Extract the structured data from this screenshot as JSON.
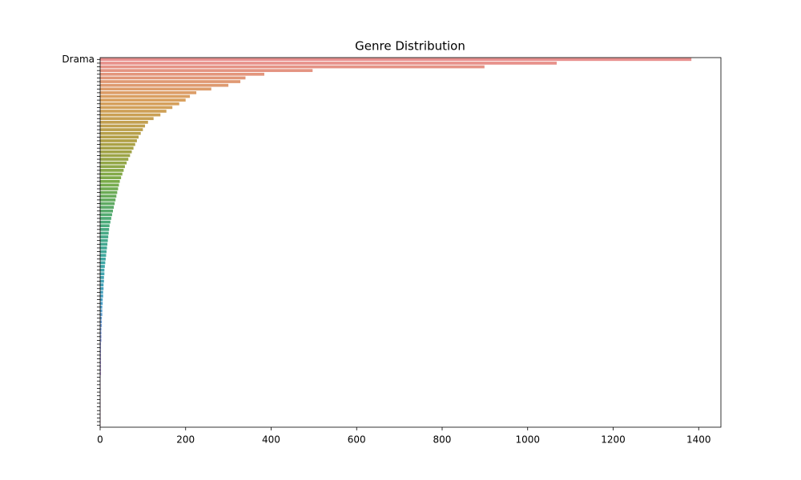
{
  "chart_data": {
    "type": "barh",
    "title": "Genre Distribution",
    "categories": [
      "Drama",
      null,
      null,
      null,
      null,
      null,
      null,
      null,
      null,
      null,
      null,
      null,
      null,
      null,
      null,
      null,
      null,
      null,
      null,
      null,
      null,
      null,
      null,
      null,
      null,
      null,
      null,
      null,
      null,
      null,
      null,
      null,
      null,
      null,
      null,
      null,
      null,
      null,
      null,
      null,
      null,
      null,
      null,
      null,
      null,
      null,
      null,
      null,
      null,
      null,
      null,
      null,
      null,
      null,
      null,
      null,
      null,
      null,
      null,
      null,
      null,
      null,
      null,
      null,
      null,
      null,
      null,
      null,
      null,
      null,
      null,
      null,
      null,
      null,
      null,
      null,
      null,
      null,
      null,
      null,
      null,
      null,
      null,
      null,
      null,
      null,
      null,
      null,
      null,
      null,
      null,
      null,
      null,
      null,
      null,
      null,
      null,
      null,
      null,
      null
    ],
    "values": [
      1383,
      1068,
      899,
      497,
      384,
      340,
      328,
      300,
      260,
      225,
      210,
      200,
      185,
      169,
      155,
      141,
      125,
      112,
      105,
      100,
      95,
      90,
      86,
      82,
      78,
      74,
      70,
      66,
      62,
      58,
      55,
      52,
      49,
      46,
      44,
      42,
      40,
      38,
      36,
      34,
      32,
      30,
      28,
      26,
      24,
      22,
      21,
      20,
      19,
      18,
      17,
      16,
      15,
      14,
      13,
      12,
      11,
      10,
      10,
      9,
      9,
      8,
      8,
      7,
      7,
      6,
      6,
      5,
      5,
      5,
      4,
      4,
      4,
      3,
      3,
      3,
      3,
      2,
      2,
      2,
      2,
      2,
      2,
      2,
      2,
      2,
      1,
      1,
      1,
      1,
      1,
      1,
      1,
      1,
      1,
      1,
      1,
      1,
      1,
      1
    ],
    "palette": [
      "#e8908f",
      "#d9a05e",
      "#b0a046",
      "#7aac4a",
      "#4cab7a",
      "#3fa8a6",
      "#4a9fc8",
      "#8a92dc",
      "#c38ad6",
      "#e08cb8"
    ],
    "xlim": [
      0,
      1452
    ],
    "xticks": [
      0,
      200,
      400,
      600,
      800,
      1000,
      1200,
      1400
    ]
  }
}
